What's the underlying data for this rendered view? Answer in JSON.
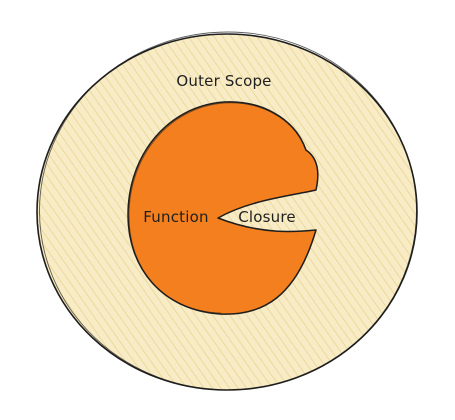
{
  "diagram": {
    "outer_label": "Outer Scope",
    "function_label": "Function",
    "closure_label": "Closure"
  },
  "colors": {
    "outer_fill": "#f5e6b8",
    "hatch": "#e7cc7e",
    "function_fill": "#f37f1f",
    "stroke": "#1e1e1e"
  }
}
